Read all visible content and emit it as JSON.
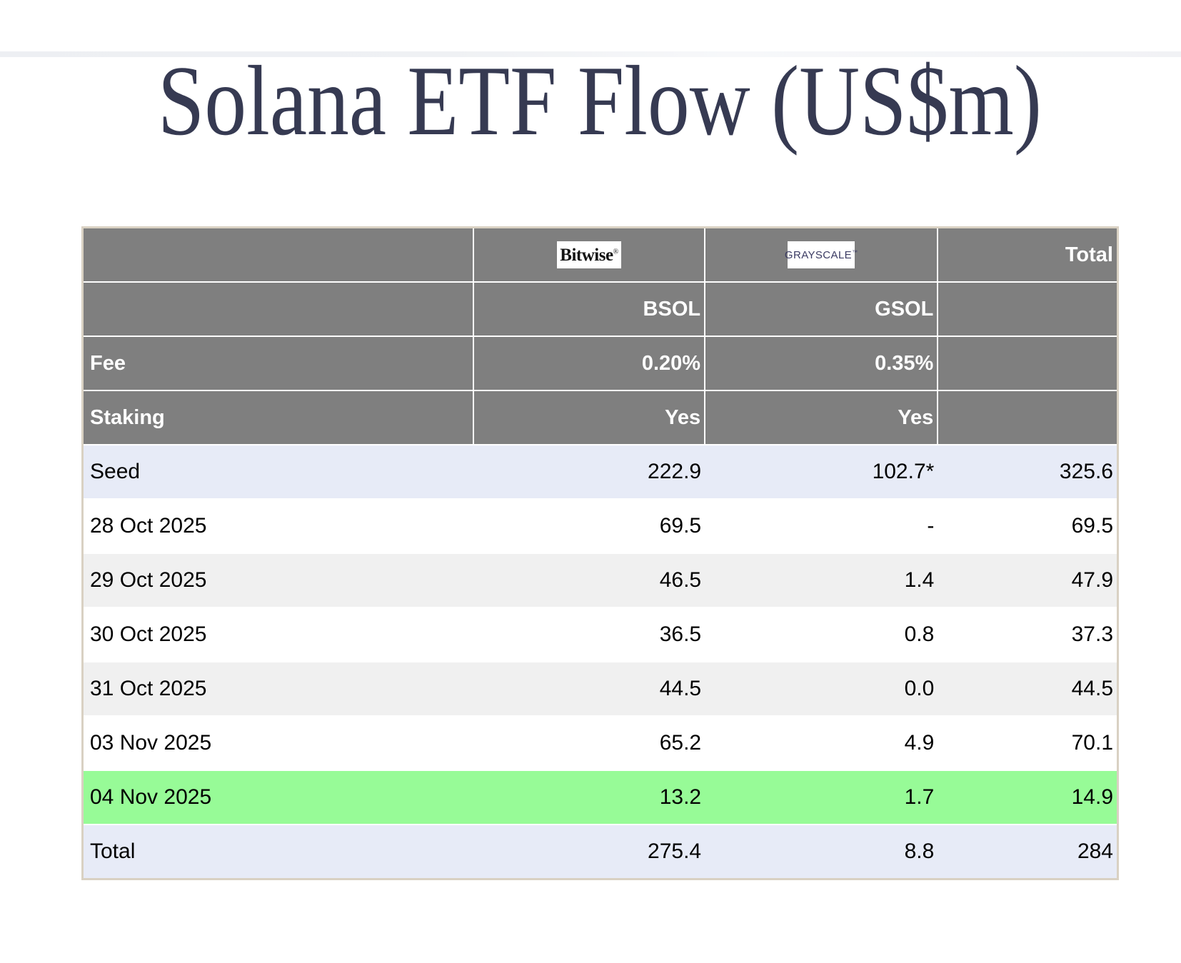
{
  "page": {
    "title": "Solana ETF Flow (US$m)"
  },
  "colors": {
    "header_gray": "#7f7f7f",
    "row_lavender": "#e7ebf7",
    "row_alt_gray": "#f0f0f0",
    "row_highlight_green": "#97fb97",
    "table_border_beige": "#d9d1c3",
    "title_navy": "#363a52",
    "grayscale_logo_navy": "#3b3b63"
  },
  "logos": {
    "bitwise": "Bitwise",
    "bitwise_mark": "®",
    "grayscale": "GRAYSCALE",
    "grayscale_mark": "™"
  },
  "header": {
    "total_label": "Total",
    "bsol_ticker": "BSOL",
    "gsol_ticker": "GSOL",
    "fee_label": "Fee",
    "fee_bsol": "0.20%",
    "fee_gsol": "0.35%",
    "staking_label": "Staking",
    "staking_bsol": "Yes",
    "staking_gsol": "Yes"
  },
  "table": {
    "rows": [
      {
        "label": "Seed",
        "bsol": "222.9",
        "gsol": "102.7*",
        "total": "325.6",
        "style": "lavender"
      },
      {
        "label": "28 Oct 2025",
        "bsol": "69.5",
        "gsol": "-",
        "total": "69.5",
        "style": "white"
      },
      {
        "label": "29 Oct 2025",
        "bsol": "46.5",
        "gsol": "1.4",
        "total": "47.9",
        "style": "gray"
      },
      {
        "label": "30 Oct 2025",
        "bsol": "36.5",
        "gsol": "0.8",
        "total": "37.3",
        "style": "white"
      },
      {
        "label": "31 Oct 2025",
        "bsol": "44.5",
        "gsol": "0.0",
        "total": "44.5",
        "style": "gray"
      },
      {
        "label": "03 Nov 2025",
        "bsol": "65.2",
        "gsol": "4.9",
        "total": "70.1",
        "style": "white"
      },
      {
        "label": "04 Nov 2025",
        "bsol": "13.2",
        "gsol": "1.7",
        "total": "14.9",
        "style": "green"
      },
      {
        "label": "Total",
        "bsol": "275.4",
        "gsol": "8.8",
        "total": "284",
        "style": "lavender"
      }
    ]
  },
  "chart_data": {
    "type": "table",
    "title": "Solana ETF Flow (US$m)",
    "columns": [
      "",
      "Bitwise BSOL",
      "Grayscale GSOL",
      "Total"
    ],
    "provider_meta": {
      "fee": {
        "BSOL": "0.20%",
        "GSOL": "0.35%"
      },
      "staking": {
        "BSOL": "Yes",
        "GSOL": "Yes"
      }
    },
    "rows": [
      [
        "Seed",
        222.9,
        "102.7*",
        325.6
      ],
      [
        "28 Oct 2025",
        69.5,
        null,
        69.5
      ],
      [
        "29 Oct 2025",
        46.5,
        1.4,
        47.9
      ],
      [
        "30 Oct 2025",
        36.5,
        0.8,
        37.3
      ],
      [
        "31 Oct 2025",
        44.5,
        0.0,
        44.5
      ],
      [
        "03 Nov 2025",
        65.2,
        4.9,
        70.1
      ],
      [
        "04 Nov 2025",
        13.2,
        1.7,
        14.9
      ],
      [
        "Total",
        275.4,
        8.8,
        284
      ]
    ],
    "highlights": {
      "04 Nov 2025": "green",
      "Seed": "lavender",
      "Total": "lavender"
    }
  }
}
